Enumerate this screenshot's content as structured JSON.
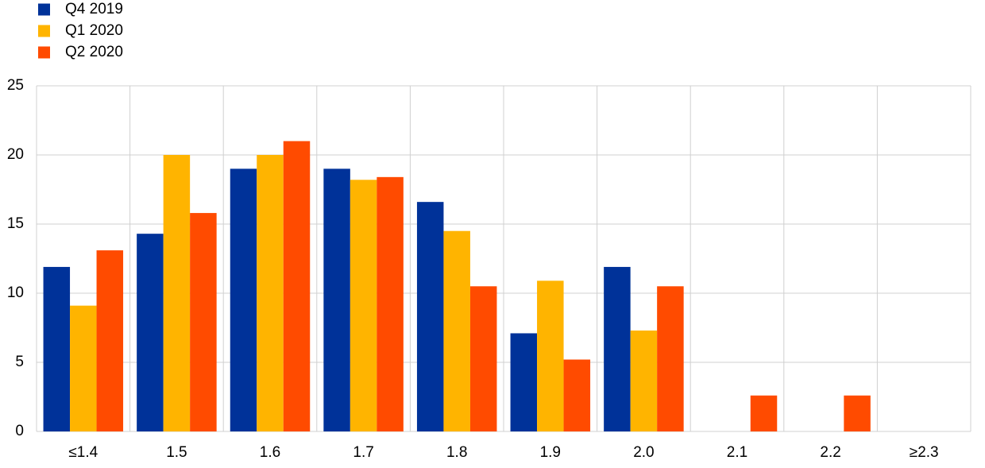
{
  "chart_data": {
    "type": "bar",
    "categories": [
      "≤1.4",
      "1.5",
      "1.6",
      "1.7",
      "1.8",
      "1.9",
      "2.0",
      "2.1",
      "2.2",
      "≥2.3"
    ],
    "series": [
      {
        "name": "Q4 2019",
        "color": "#003299",
        "values": [
          11.9,
          14.3,
          19.0,
          19.0,
          16.6,
          7.1,
          11.9,
          null,
          null,
          null
        ]
      },
      {
        "name": "Q1 2020",
        "color": "#ffb400",
        "values": [
          9.1,
          20.0,
          20.0,
          18.2,
          14.5,
          10.9,
          7.3,
          null,
          null,
          null
        ]
      },
      {
        "name": "Q2 2020",
        "color": "#ff4b00",
        "values": [
          13.1,
          15.8,
          21.0,
          18.4,
          10.5,
          5.2,
          10.5,
          2.6,
          2.6,
          null
        ]
      }
    ],
    "ylim": [
      0,
      25
    ],
    "yticks": [
      0,
      5,
      10,
      15,
      20,
      25
    ],
    "grid": true,
    "legend": "top-left"
  }
}
